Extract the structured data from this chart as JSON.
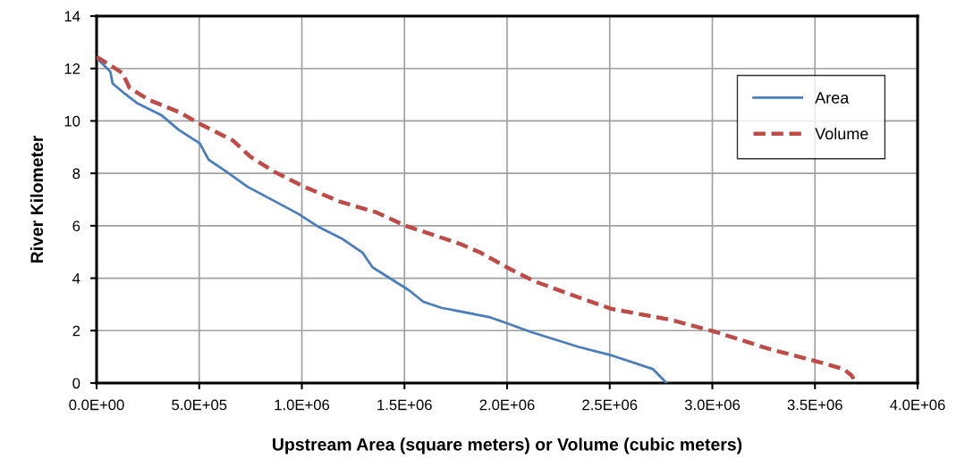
{
  "chart_data": {
    "type": "line",
    "xlabel": "Upstream Area (square meters) or Volume (cubic meters)",
    "ylabel": "River Kilometer",
    "xlim": [
      0,
      4000000
    ],
    "ylim": [
      0,
      14
    ],
    "xticks": [
      {
        "value": 0,
        "label": "0.0E+00"
      },
      {
        "value": 500000,
        "label": "5.0E+05"
      },
      {
        "value": 1000000,
        "label": "1.0E+06"
      },
      {
        "value": 1500000,
        "label": "1.5E+06"
      },
      {
        "value": 2000000,
        "label": "2.0E+06"
      },
      {
        "value": 2500000,
        "label": "2.5E+06"
      },
      {
        "value": 3000000,
        "label": "3.0E+06"
      },
      {
        "value": 3500000,
        "label": "3.5E+06"
      },
      {
        "value": 4000000,
        "label": "4.0E+06"
      }
    ],
    "yticks": [
      0,
      2,
      4,
      6,
      8,
      10,
      12,
      14
    ],
    "grid": true,
    "legend": "top right",
    "marker": "none",
    "series": [
      {
        "name": "Area",
        "color": "#4a7ebb",
        "line_style": "solid",
        "x": [
          0,
          67000,
          78000,
          139000,
          197000,
          314000,
          400000,
          503000,
          546000,
          633000,
          735000,
          982000,
          1083000,
          1199000,
          1295000,
          1345000,
          1520000,
          1592000,
          1680000,
          1912000,
          2014000,
          2115000,
          2348000,
          2515000,
          2711000,
          2740000,
          2777000
        ],
        "values": [
          12.4,
          11.88,
          11.43,
          11.03,
          10.68,
          10.23,
          9.66,
          9.14,
          8.52,
          8.06,
          7.49,
          6.46,
          5.95,
          5.49,
          4.98,
          4.41,
          3.55,
          3.1,
          2.87,
          2.52,
          2.24,
          1.95,
          1.38,
          1.04,
          0.53,
          0.3,
          0
        ]
      },
      {
        "name": "Volume",
        "color": "#be4b48",
        "line_style": "dashed",
        "x": [
          0,
          125000,
          161000,
          256000,
          401000,
          503000,
          663000,
          750000,
          866000,
          1011000,
          1186000,
          1360000,
          1505000,
          1767000,
          1869000,
          2014000,
          2130000,
          2348000,
          2508000,
          2798000,
          3016000,
          3264000,
          3525000,
          3641000,
          3677000,
          3702000
        ],
        "values": [
          12.45,
          11.83,
          11.26,
          10.8,
          10.34,
          9.89,
          9.26,
          8.63,
          8.06,
          7.49,
          6.92,
          6.52,
          6.0,
          5.32,
          4.98,
          4.35,
          3.89,
          3.27,
          2.83,
          2.41,
          1.95,
          1.33,
          0.79,
          0.53,
          0.3,
          0
        ]
      }
    ]
  }
}
